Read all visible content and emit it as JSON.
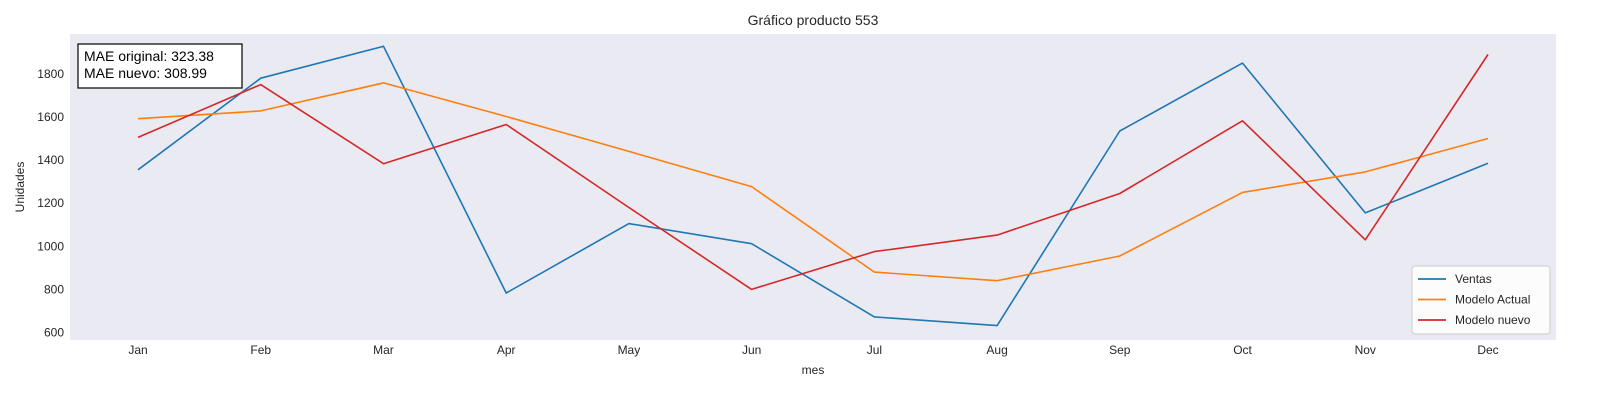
{
  "chart_data": {
    "type": "line",
    "title": "Gráfico producto 553",
    "xlabel": "mes",
    "ylabel": "Unidades",
    "categories": [
      "Jan",
      "Feb",
      "Mar",
      "Apr",
      "May",
      "Jun",
      "Jul",
      "Aug",
      "Sep",
      "Oct",
      "Nov",
      "Dec"
    ],
    "yticks": [
      600,
      800,
      1000,
      1200,
      1400,
      1600,
      1800
    ],
    "ylim": [
      565,
      1985
    ],
    "grid": false,
    "legend_position": "bottom-right",
    "background": "#eaeaf2",
    "series": [
      {
        "name": "Ventas",
        "color": "#1f77b4",
        "values": [
          1355,
          1780,
          1928,
          783,
          1105,
          1012,
          672,
          632,
          1535,
          1850,
          1155,
          1385
        ]
      },
      {
        "name": "Modelo Actual",
        "color": "#ff7f0e",
        "values": [
          1592,
          1628,
          1758,
          1602,
          1440,
          1277,
          880,
          840,
          955,
          1250,
          1345,
          1500
        ]
      },
      {
        "name": "Modelo nuevo",
        "color": "#d62728",
        "values": [
          1505,
          1750,
          1383,
          1565,
          1180,
          800,
          975,
          1052,
          1245,
          1582,
          1030,
          1890
        ]
      }
    ],
    "annotation": {
      "lines": [
        "MAE original: 323.38",
        "MAE nuevo: 308.99"
      ]
    }
  }
}
